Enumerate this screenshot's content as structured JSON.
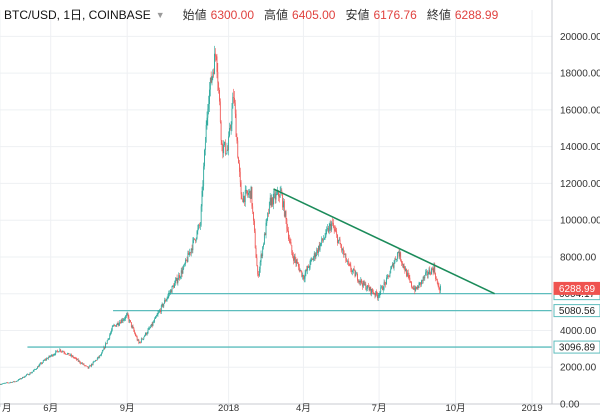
{
  "header": {
    "symbol": "BTC/USD, 1日, COINBASE",
    "dropdown_icon": "caret-down-icon",
    "stats": [
      {
        "label": "始値",
        "value": "6300.00"
      },
      {
        "label": "高値",
        "value": "6405.00"
      },
      {
        "label": "安値",
        "value": "6176.76"
      },
      {
        "label": "終値",
        "value": "6288.99"
      }
    ]
  },
  "colors": {
    "up": "#26a69a",
    "down": "#ef5350",
    "trendline": "#1b8b5a",
    "support": "#5dbdbd",
    "price_tag": "#ef5350",
    "grid": "#eef0f3"
  },
  "chart_data": {
    "type": "candlestick",
    "title": "BTC/USD, 1日, COINBASE",
    "xlabel": "",
    "ylabel": "",
    "ylim": [
      0,
      21000
    ],
    "x_range": [
      "2017-04-01",
      "2019-01-25"
    ],
    "x_ticks": [
      {
        "date": "2017-04-01",
        "label": "月"
      },
      {
        "date": "2017-06-01",
        "label": "6月"
      },
      {
        "date": "2017-09-01",
        "label": "9月"
      },
      {
        "date": "2018-01-01",
        "label": "2018"
      },
      {
        "date": "2018-04-01",
        "label": "4月"
      },
      {
        "date": "2018-07-01",
        "label": "7月"
      },
      {
        "date": "2018-10-01",
        "label": "10月"
      },
      {
        "date": "2019-01-01",
        "label": "2019"
      }
    ],
    "y_ticks": [
      "0.00",
      "2000.00",
      "4000.00",
      "6000.00",
      "8000.00",
      "10000.00",
      "12000.00",
      "14000.00",
      "16000.00",
      "18000.00",
      "20000.00"
    ],
    "y_tick_values": [
      0,
      2000,
      4000,
      6000,
      8000,
      10000,
      12000,
      14000,
      16000,
      18000,
      20000
    ],
    "price_path": [
      [
        "2017-04-01",
        1080
      ],
      [
        "2017-04-20",
        1230
      ],
      [
        "2017-05-10",
        1750
      ],
      [
        "2017-05-25",
        2400
      ],
      [
        "2017-06-12",
        2950
      ],
      [
        "2017-06-28",
        2550
      ],
      [
        "2017-07-16",
        1950
      ],
      [
        "2017-08-01",
        2700
      ],
      [
        "2017-08-15",
        4200
      ],
      [
        "2017-09-01",
        4800
      ],
      [
        "2017-09-15",
        3300
      ],
      [
        "2017-10-01",
        4300
      ],
      [
        "2017-10-20",
        5900
      ],
      [
        "2017-11-08",
        7400
      ],
      [
        "2017-11-28",
        9800
      ],
      [
        "2017-12-07",
        16500
      ],
      [
        "2017-12-17",
        19300
      ],
      [
        "2017-12-24",
        14000
      ],
      [
        "2017-12-31",
        13800
      ],
      [
        "2018-01-07",
        16800
      ],
      [
        "2018-01-16",
        11200
      ],
      [
        "2018-01-28",
        11500
      ],
      [
        "2018-02-05",
        6900
      ],
      [
        "2018-02-20",
        11000
      ],
      [
        "2018-03-05",
        11500
      ],
      [
        "2018-03-18",
        8200
      ],
      [
        "2018-04-01",
        6900
      ],
      [
        "2018-04-12",
        7900
      ],
      [
        "2018-05-05",
        9800
      ],
      [
        "2018-05-25",
        7500
      ],
      [
        "2018-06-12",
        6500
      ],
      [
        "2018-06-29",
        5900
      ],
      [
        "2018-07-10",
        6700
      ],
      [
        "2018-07-24",
        8300
      ],
      [
        "2018-08-08",
        6500
      ],
      [
        "2018-08-14",
        6200
      ],
      [
        "2018-08-28",
        7100
      ],
      [
        "2018-09-05",
        7400
      ],
      [
        "2018-09-10",
        6300
      ],
      [
        "2018-09-13",
        6289
      ]
    ],
    "horizontal_levels": [
      {
        "value": 6004.17,
        "label": "6004.17",
        "start": "2017-10-20"
      },
      {
        "value": 5080.56,
        "label": "5080.56",
        "start": "2017-08-15"
      },
      {
        "value": 3096.89,
        "label": "3096.89",
        "start": "2017-05-04"
      }
    ],
    "trendline": {
      "from": [
        "2018-02-24",
        11700
      ],
      "to": [
        "2018-11-17",
        6000
      ]
    },
    "last_price": {
      "value": 6288.99,
      "label": "6288.99"
    },
    "grid": true,
    "legend": "none"
  }
}
